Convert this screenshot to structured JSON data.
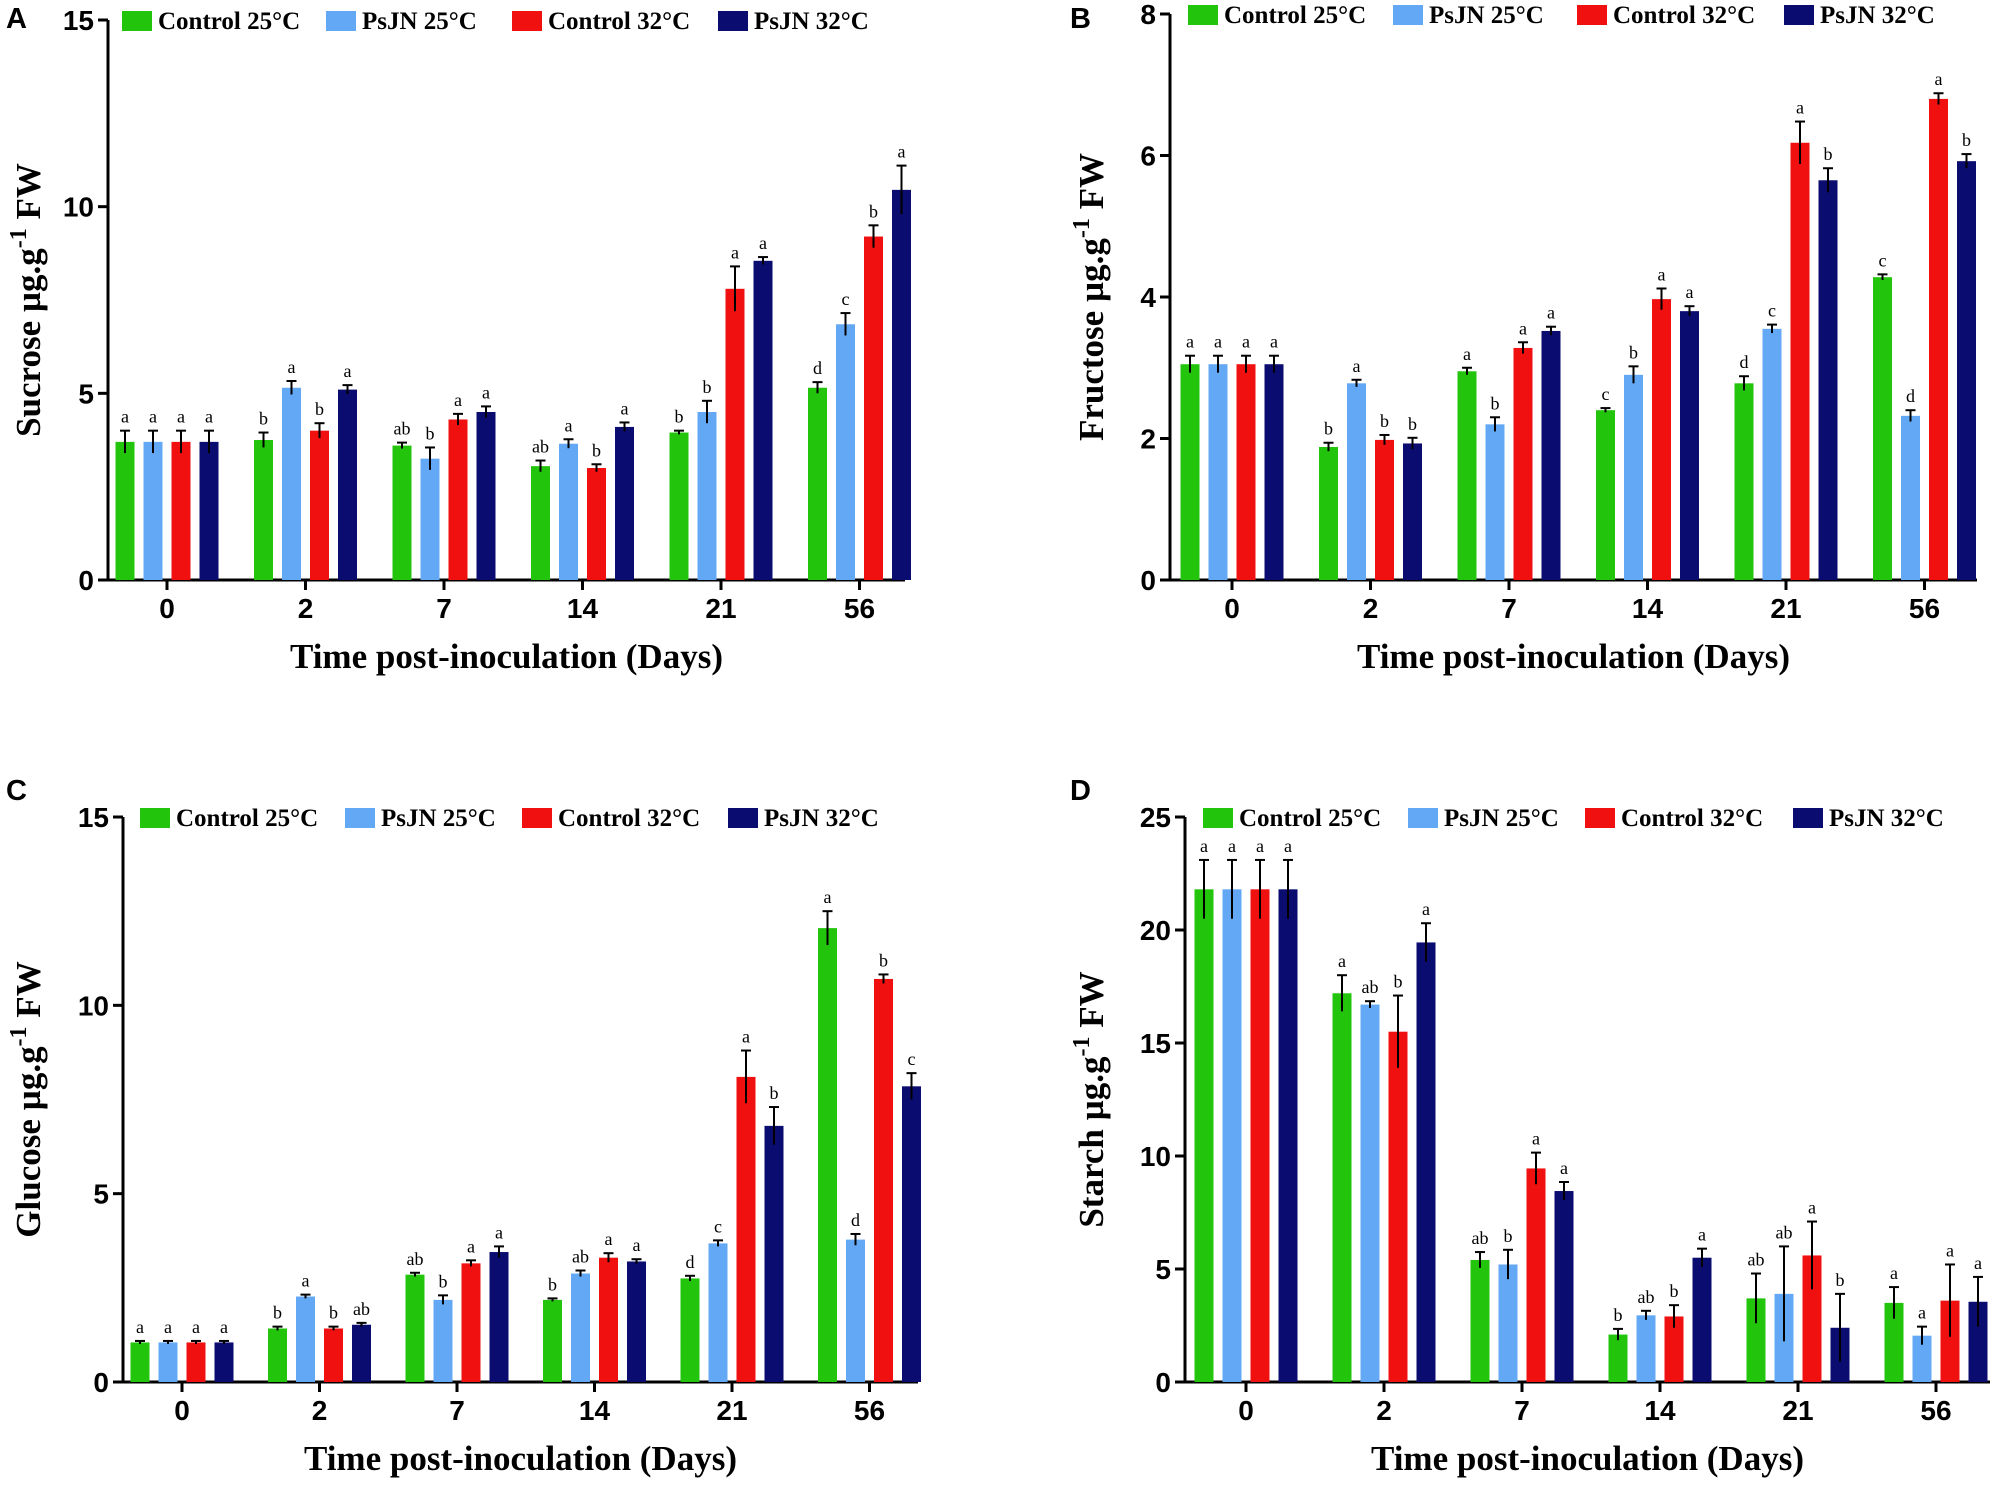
{
  "figure": {
    "colors": {
      "control_25": "#22c40c",
      "psjn_25": "#62a8f4",
      "control_32": "#f01010",
      "psjn_32": "#0b0c70"
    }
  },
  "chart_data": [
    {
      "panel": "A",
      "type": "bar",
      "title": "",
      "xlabel": "Time post-inoculation (Days)",
      "ylabel": "Sucrose µg.g-1 FW",
      "ylabel_parts": [
        "Sucrose µg.g",
        "-1",
        " FW"
      ],
      "ylim": [
        0,
        15
      ],
      "yticks": [
        0,
        5,
        10,
        15
      ],
      "categories": [
        "0",
        "2",
        "7",
        "14",
        "21",
        "56"
      ],
      "legend": [
        "Control 25°C",
        "PsJN 25°C",
        "Control 32°C",
        "PsJN 32°C"
      ],
      "series": [
        {
          "name": "Control 25°C",
          "color": "#22c40c",
          "values": [
            3.7,
            3.75,
            3.6,
            3.05,
            3.95,
            5.15
          ],
          "errors": [
            0.3,
            0.2,
            0.08,
            0.15,
            0.05,
            0.15
          ],
          "letters": [
            "a",
            "b",
            "ab",
            "ab",
            "b",
            "d"
          ]
        },
        {
          "name": "PsJN 25°C",
          "color": "#62a8f4",
          "values": [
            3.7,
            5.15,
            3.25,
            3.65,
            4.5,
            6.85
          ],
          "errors": [
            0.3,
            0.18,
            0.3,
            0.12,
            0.3,
            0.3
          ],
          "letters": [
            "a",
            "a",
            "b",
            "a",
            "b",
            "c"
          ]
        },
        {
          "name": "Control 32°C",
          "color": "#f01010",
          "values": [
            3.7,
            4.0,
            4.3,
            3.0,
            7.8,
            9.2
          ],
          "errors": [
            0.3,
            0.2,
            0.15,
            0.1,
            0.6,
            0.3
          ],
          "letters": [
            "a",
            "b",
            "a",
            "b",
            "a",
            "b"
          ]
        },
        {
          "name": "PsJN 32°C",
          "color": "#0b0c70",
          "values": [
            3.7,
            5.1,
            4.5,
            4.1,
            8.55,
            10.45
          ],
          "errors": [
            0.3,
            0.12,
            0.15,
            0.12,
            0.1,
            0.65
          ],
          "letters": [
            "a",
            "a",
            "a",
            "a",
            "a",
            "a"
          ]
        }
      ]
    },
    {
      "panel": "B",
      "type": "bar",
      "title": "",
      "xlabel": "Time post-inoculation (Days)",
      "ylabel": "Fructose µg.g-1 FW",
      "ylabel_parts": [
        "Fructose µg.g",
        "-1",
        " FW"
      ],
      "ylim": [
        0,
        8
      ],
      "yticks": [
        0,
        2,
        4,
        6,
        8
      ],
      "categories": [
        "0",
        "2",
        "7",
        "14",
        "21",
        "56"
      ],
      "legend": [
        "Control 25°C",
        "PsJN 25°C",
        "Control 32°C",
        "PsJN 32°C"
      ],
      "series": [
        {
          "name": "Control 25°C",
          "color": "#22c40c",
          "values": [
            3.05,
            1.88,
            2.95,
            2.4,
            2.78,
            4.28
          ],
          "errors": [
            0.12,
            0.06,
            0.05,
            0.03,
            0.1,
            0.04
          ],
          "letters": [
            "a",
            "b",
            "a",
            "c",
            "d",
            "c"
          ]
        },
        {
          "name": "PsJN 25°C",
          "color": "#62a8f4",
          "values": [
            3.05,
            2.78,
            2.2,
            2.9,
            3.55,
            2.32
          ],
          "errors": [
            0.12,
            0.05,
            0.1,
            0.12,
            0.06,
            0.08
          ],
          "letters": [
            "a",
            "a",
            "b",
            "b",
            "c",
            "d"
          ]
        },
        {
          "name": "Control 32°C",
          "color": "#f01010",
          "values": [
            3.05,
            1.98,
            3.28,
            3.97,
            6.18,
            6.8
          ],
          "errors": [
            0.12,
            0.07,
            0.08,
            0.15,
            0.3,
            0.08
          ],
          "letters": [
            "a",
            "b",
            "a",
            "a",
            "a",
            "a"
          ]
        },
        {
          "name": "PsJN 32°C",
          "color": "#0b0c70",
          "values": [
            3.05,
            1.93,
            3.52,
            3.8,
            5.65,
            5.92
          ],
          "errors": [
            0.12,
            0.08,
            0.06,
            0.07,
            0.17,
            0.1
          ],
          "letters": [
            "a",
            "b",
            "a",
            "a",
            "b",
            "b"
          ]
        }
      ]
    },
    {
      "panel": "C",
      "type": "bar",
      "title": "",
      "xlabel": "Time post-inoculation (Days)",
      "ylabel": "Glucose µg.g-1 FW",
      "ylabel_parts": [
        "Glucose µg.g",
        "-1",
        " FW"
      ],
      "ylim": [
        0,
        15
      ],
      "yticks": [
        0,
        5,
        10,
        15
      ],
      "categories": [
        "0",
        "2",
        "7",
        "14",
        "21",
        "56"
      ],
      "legend": [
        "Control 25°C",
        "PsJN 25°C",
        "Control 32°C",
        "PsJN 32°C"
      ],
      "series": [
        {
          "name": "Control 25°C",
          "color": "#22c40c",
          "values": [
            1.05,
            1.42,
            2.85,
            2.18,
            2.75,
            12.05
          ],
          "errors": [
            0.04,
            0.05,
            0.05,
            0.04,
            0.07,
            0.45
          ],
          "letters": [
            "a",
            "b",
            "ab",
            "b",
            "d",
            "a"
          ]
        },
        {
          "name": "PsJN 25°C",
          "color": "#62a8f4",
          "values": [
            1.05,
            2.27,
            2.18,
            2.88,
            3.68,
            3.78
          ],
          "errors": [
            0.04,
            0.05,
            0.12,
            0.08,
            0.08,
            0.15
          ],
          "letters": [
            "a",
            "a",
            "b",
            "ab",
            "c",
            "d"
          ]
        },
        {
          "name": "Control 32°C",
          "color": "#f01010",
          "values": [
            1.05,
            1.42,
            3.15,
            3.3,
            8.1,
            10.7
          ],
          "errors": [
            0.04,
            0.05,
            0.08,
            0.12,
            0.7,
            0.12
          ],
          "letters": [
            "a",
            "b",
            "a",
            "a",
            "a",
            "b"
          ]
        },
        {
          "name": "PsJN 32°C",
          "color": "#0b0c70",
          "values": [
            1.05,
            1.52,
            3.45,
            3.2,
            6.8,
            7.85
          ],
          "errors": [
            0.04,
            0.05,
            0.15,
            0.06,
            0.5,
            0.35
          ],
          "letters": [
            "a",
            "ab",
            "a",
            "a",
            "b",
            "c"
          ]
        }
      ]
    },
    {
      "panel": "D",
      "type": "bar",
      "title": "",
      "xlabel": "Time post-inoculation (Days)",
      "ylabel": "Starch µg.g-1 FW",
      "ylabel_parts": [
        "Starch µg.g",
        "-1",
        " FW"
      ],
      "ylim": [
        0,
        25
      ],
      "yticks": [
        0,
        5,
        10,
        15,
        20,
        25
      ],
      "categories": [
        "0",
        "2",
        "7",
        "14",
        "21",
        "56"
      ],
      "legend": [
        "Control 25°C",
        "PsJN 25°C",
        "Control 32°C",
        "PsJN 32°C"
      ],
      "series": [
        {
          "name": "Control 25°C",
          "color": "#22c40c",
          "values": [
            21.8,
            17.2,
            5.4,
            2.1,
            3.7,
            3.5
          ],
          "errors": [
            1.3,
            0.8,
            0.35,
            0.25,
            1.1,
            0.7
          ],
          "letters": [
            "a",
            "a",
            "ab",
            "b",
            "ab",
            "a"
          ]
        },
        {
          "name": "PsJN 25°C",
          "color": "#62a8f4",
          "values": [
            21.8,
            16.7,
            5.2,
            2.95,
            3.9,
            2.05
          ],
          "errors": [
            1.3,
            0.15,
            0.65,
            0.2,
            2.1,
            0.4
          ],
          "letters": [
            "a",
            "ab",
            "b",
            "ab",
            "ab",
            "a"
          ]
        },
        {
          "name": "Control 32°C",
          "color": "#f01010",
          "values": [
            21.8,
            15.5,
            9.45,
            2.9,
            5.6,
            3.6
          ],
          "errors": [
            1.3,
            1.6,
            0.7,
            0.5,
            1.5,
            1.6
          ],
          "letters": [
            "a",
            "b",
            "a",
            "b",
            "a",
            "a"
          ]
        },
        {
          "name": "PsJN 32°C",
          "color": "#0b0c70",
          "values": [
            21.8,
            19.45,
            8.45,
            5.5,
            2.4,
            3.55
          ],
          "errors": [
            1.3,
            0.85,
            0.4,
            0.4,
            1.5,
            1.1
          ],
          "letters": [
            "a",
            "a",
            "a",
            "a",
            "b",
            "a"
          ]
        }
      ]
    }
  ]
}
